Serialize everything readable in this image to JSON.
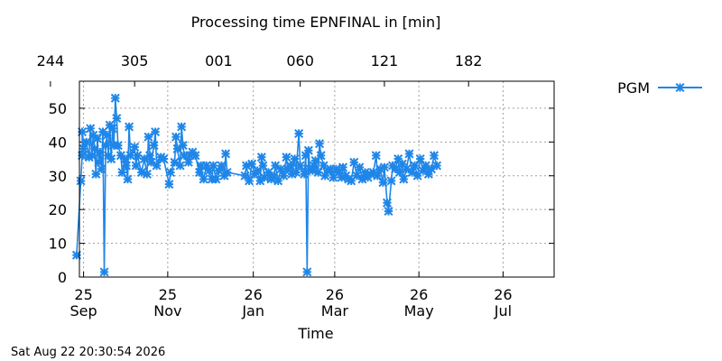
{
  "chart_data": {
    "type": "line",
    "title": "Processing time EPNFINAL in [min]",
    "xlabel": "Time",
    "ylabel": "",
    "ylim": [
      0,
      58
    ],
    "xlim": [
      "2025-09-22",
      "2026-09-01"
    ],
    "y_ticks": [
      "0",
      "10",
      "20",
      "30",
      "40",
      "50"
    ],
    "x_ticks": [
      {
        "date": "2025-09-25",
        "line1": "25",
        "line2": "Sep"
      },
      {
        "date": "2025-11-25",
        "line1": "25",
        "line2": "Nov"
      },
      {
        "date": "2026-01-26",
        "line1": "26",
        "line2": "Jan"
      },
      {
        "date": "2026-03-26",
        "line1": "26",
        "line2": "Mar"
      },
      {
        "date": "2026-05-26",
        "line1": "26",
        "line2": "May"
      },
      {
        "date": "2026-07-26",
        "line1": "26",
        "line2": "Jul"
      }
    ],
    "x2_ticks": [
      {
        "date": "2025-09-01",
        "label": "244"
      },
      {
        "date": "2025-11-01",
        "label": "305"
      },
      {
        "date": "2026-01-01",
        "label": "001"
      },
      {
        "date": "2026-03-01",
        "label": "060"
      },
      {
        "date": "2026-05-01",
        "label": "121"
      },
      {
        "date": "2026-07-01",
        "label": "182"
      }
    ],
    "grid": true,
    "legend_position": "top-right",
    "series": [
      {
        "name": "PGM",
        "color": "#1f86e8",
        "marker": "x-star",
        "points": [
          [
            "2025-09-20",
            6.5
          ],
          [
            "2025-09-23",
            28.5
          ],
          [
            "2025-09-24",
            36
          ],
          [
            "2025-09-24",
            43
          ],
          [
            "2025-09-25",
            38
          ],
          [
            "2025-09-27",
            40
          ],
          [
            "2025-09-29",
            35.5
          ],
          [
            "2025-09-30",
            44
          ],
          [
            "2025-10-01",
            36
          ],
          [
            "2025-10-02",
            42
          ],
          [
            "2025-10-03",
            38
          ],
          [
            "2025-10-04",
            30.5
          ],
          [
            "2025-10-05",
            41
          ],
          [
            "2025-10-06",
            34
          ],
          [
            "2025-10-07",
            37
          ],
          [
            "2025-10-08",
            32
          ],
          [
            "2025-10-09",
            43
          ],
          [
            "2025-10-10",
            1.5
          ],
          [
            "2025-10-11",
            39
          ],
          [
            "2025-10-12",
            42
          ],
          [
            "2025-10-13",
            36
          ],
          [
            "2025-10-14",
            45
          ],
          [
            "2025-10-15",
            35
          ],
          [
            "2025-10-16",
            44
          ],
          [
            "2025-10-17",
            39
          ],
          [
            "2025-10-18",
            53
          ],
          [
            "2025-10-19",
            47
          ],
          [
            "2025-10-20",
            39
          ],
          [
            "2025-10-22",
            36
          ],
          [
            "2025-10-23",
            31
          ],
          [
            "2025-10-25",
            35
          ],
          [
            "2025-10-26",
            33
          ],
          [
            "2025-10-27",
            29
          ],
          [
            "2025-10-28",
            44.5
          ],
          [
            "2025-10-29",
            36
          ],
          [
            "2025-11-01",
            38.5
          ],
          [
            "2025-11-02",
            33
          ],
          [
            "2025-11-03",
            36
          ],
          [
            "2025-11-06",
            31
          ],
          [
            "2025-11-08",
            35
          ],
          [
            "2025-11-10",
            30.5
          ],
          [
            "2025-11-11",
            41.5
          ],
          [
            "2025-11-12",
            36
          ],
          [
            "2025-11-13",
            34
          ],
          [
            "2025-11-15",
            39
          ],
          [
            "2025-11-16",
            43
          ],
          [
            "2025-11-17",
            33
          ],
          [
            "2025-11-20",
            35.5
          ],
          [
            "2025-11-22",
            35
          ],
          [
            "2025-11-26",
            27.5
          ],
          [
            "2025-11-27",
            31
          ],
          [
            "2025-11-30",
            34
          ],
          [
            "2025-12-01",
            41.5
          ],
          [
            "2025-12-02",
            38
          ],
          [
            "2025-12-04",
            33
          ],
          [
            "2025-12-05",
            44.5
          ],
          [
            "2025-12-06",
            39
          ],
          [
            "2025-12-07",
            36
          ],
          [
            "2025-12-10",
            34
          ],
          [
            "2025-12-11",
            36
          ],
          [
            "2025-12-13",
            37
          ],
          [
            "2025-12-15",
            36
          ],
          [
            "2025-12-18",
            31
          ],
          [
            "2025-12-19",
            33
          ],
          [
            "2025-12-21",
            29
          ],
          [
            "2025-12-23",
            33
          ],
          [
            "2025-12-25",
            31.5
          ],
          [
            "2025-12-27",
            29
          ],
          [
            "2025-12-28",
            33
          ],
          [
            "2025-12-30",
            29
          ],
          [
            "2026-01-01",
            31.5
          ],
          [
            "2026-01-03",
            33
          ],
          [
            "2026-01-05",
            30
          ],
          [
            "2026-01-06",
            36.5
          ],
          [
            "2026-01-07",
            31
          ],
          [
            "2026-01-20",
            30
          ],
          [
            "2026-01-21",
            33
          ],
          [
            "2026-01-23",
            28.5
          ],
          [
            "2026-01-25",
            33.5
          ],
          [
            "2026-01-27",
            30.5
          ],
          [
            "2026-01-29",
            31.5
          ],
          [
            "2026-01-31",
            28.5
          ],
          [
            "2026-02-01",
            35.5
          ],
          [
            "2026-02-02",
            33
          ],
          [
            "2026-02-03",
            29.5
          ],
          [
            "2026-02-06",
            31
          ],
          [
            "2026-02-08",
            29
          ],
          [
            "2026-02-10",
            30
          ],
          [
            "2026-02-11",
            33
          ],
          [
            "2026-02-13",
            28.5
          ],
          [
            "2026-02-15",
            32
          ],
          [
            "2026-02-17",
            30
          ],
          [
            "2026-02-19",
            35.5
          ],
          [
            "2026-02-20",
            32
          ],
          [
            "2026-02-22",
            33
          ],
          [
            "2026-02-23",
            30.5
          ],
          [
            "2026-02-25",
            35
          ],
          [
            "2026-02-26",
            31
          ],
          [
            "2026-02-28",
            42.5
          ],
          [
            "2026-03-01",
            33
          ],
          [
            "2026-03-04",
            30.5
          ],
          [
            "2026-03-05",
            36
          ],
          [
            "2026-03-06",
            1.5
          ],
          [
            "2026-03-07",
            37.5
          ],
          [
            "2026-03-08",
            32
          ],
          [
            "2026-03-10",
            31.5
          ],
          [
            "2026-03-11",
            33
          ],
          [
            "2026-03-12",
            34.5
          ],
          [
            "2026-03-14",
            31
          ],
          [
            "2026-03-15",
            39.5
          ],
          [
            "2026-03-16",
            36
          ],
          [
            "2026-03-18",
            33
          ],
          [
            "2026-03-19",
            30
          ],
          [
            "2026-03-21",
            31.5
          ],
          [
            "2026-03-23",
            32
          ],
          [
            "2026-03-25",
            29.5
          ],
          [
            "2026-03-27",
            32
          ],
          [
            "2026-03-29",
            31
          ],
          [
            "2026-03-31",
            29.5
          ],
          [
            "2026-04-01",
            32.5
          ],
          [
            "2026-04-03",
            30
          ],
          [
            "2026-04-05",
            29
          ],
          [
            "2026-04-07",
            28.5
          ],
          [
            "2026-04-09",
            34
          ],
          [
            "2026-04-11",
            30
          ],
          [
            "2026-04-13",
            32.5
          ],
          [
            "2026-04-15",
            29
          ],
          [
            "2026-04-17",
            31
          ],
          [
            "2026-04-19",
            29.5
          ],
          [
            "2026-04-21",
            30.5
          ],
          [
            "2026-04-23",
            31
          ],
          [
            "2026-04-25",
            36
          ],
          [
            "2026-04-26",
            30
          ],
          [
            "2026-04-28",
            32
          ],
          [
            "2026-04-30",
            28
          ],
          [
            "2026-05-01",
            32.5
          ],
          [
            "2026-05-03",
            22
          ],
          [
            "2026-05-04",
            19.5
          ],
          [
            "2026-05-06",
            28.5
          ],
          [
            "2026-05-07",
            33
          ],
          [
            "2026-05-09",
            32
          ],
          [
            "2026-05-11",
            35
          ],
          [
            "2026-05-12",
            31
          ],
          [
            "2026-05-14",
            33.5
          ],
          [
            "2026-05-15",
            29
          ],
          [
            "2026-05-17",
            32
          ],
          [
            "2026-05-19",
            36.5
          ],
          [
            "2026-05-21",
            31
          ],
          [
            "2026-05-23",
            33
          ],
          [
            "2026-05-25",
            30
          ],
          [
            "2026-05-27",
            35
          ],
          [
            "2026-05-29",
            31.5
          ],
          [
            "2026-05-31",
            33
          ],
          [
            "2026-06-02",
            30.5
          ],
          [
            "2026-06-04",
            32
          ],
          [
            "2026-06-06",
            36
          ],
          [
            "2026-06-08",
            33
          ]
        ]
      }
    ],
    "footer": "Sat Aug 22 20:30:54 2026"
  }
}
